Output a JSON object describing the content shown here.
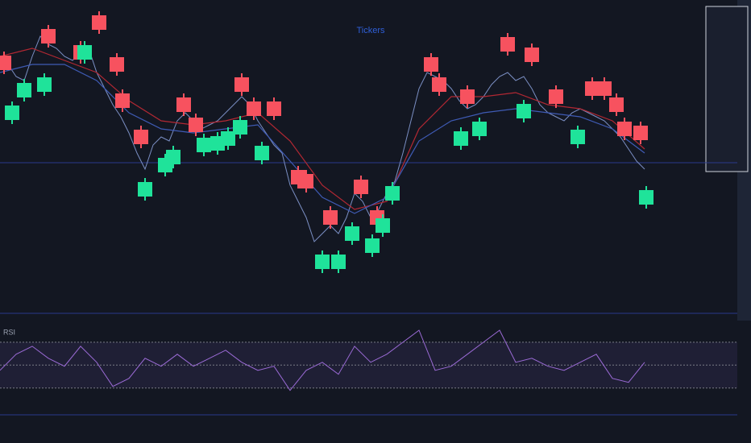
{
  "chart_data": [
    {
      "type": "line",
      "title": "Tickers",
      "xlim": [
        0,
        810
      ],
      "ylim": [
        0,
        400
      ],
      "level": 198,
      "x": [
        0,
        10,
        20,
        30,
        40,
        50,
        60,
        70,
        80,
        90,
        100,
        110,
        120,
        130,
        140,
        150,
        160,
        170,
        180,
        190,
        200,
        210,
        220,
        230,
        240,
        250,
        260,
        270,
        280,
        290,
        300,
        310,
        320,
        330,
        340,
        350,
        360,
        370,
        380,
        390,
        400,
        410,
        420,
        430,
        440,
        450,
        460,
        470,
        480,
        490,
        500,
        510,
        520,
        530,
        540,
        550,
        560,
        570,
        580,
        590,
        600,
        610,
        620,
        630,
        640,
        650,
        660,
        670,
        680,
        690,
        700,
        710,
        720,
        730,
        740,
        750,
        760,
        770,
        780,
        790,
        800
      ],
      "series": [
        {
          "color": "#7b8fc4",
          "values": [
            325,
            320,
            305,
            300,
            330,
            355,
            345,
            340,
            330,
            325,
            335,
            340,
            310,
            290,
            270,
            255,
            235,
            210,
            190,
            220,
            230,
            225,
            250,
            260,
            250,
            240,
            245,
            250,
            260,
            270,
            280,
            270,
            250,
            235,
            220,
            210,
            170,
            150,
            130,
            100,
            110,
            120,
            110,
            130,
            160,
            150,
            130,
            140,
            160,
            175,
            210,
            250,
            290,
            310,
            305,
            300,
            290,
            275,
            265,
            270,
            280,
            295,
            305,
            310,
            300,
            305,
            290,
            270,
            260,
            255,
            250,
            260,
            265,
            260,
            255,
            250,
            240,
            230,
            215,
            200,
            190
          ]
        },
        {
          "color": "#b22833",
          "x": [
            0,
            40,
            80,
            120,
            160,
            200,
            240,
            280,
            320,
            360,
            400,
            440,
            480,
            520,
            560,
            600,
            640,
            680,
            720,
            760,
            800
          ],
          "values": [
            330,
            340,
            325,
            310,
            275,
            250,
            245,
            250,
            260,
            225,
            170,
            140,
            150,
            240,
            280,
            280,
            285,
            270,
            265,
            250,
            215
          ]
        },
        {
          "color": "#3f5bb5",
          "x": [
            0,
            40,
            80,
            120,
            160,
            200,
            240,
            280,
            320,
            360,
            400,
            440,
            480,
            520,
            560,
            600,
            640,
            680,
            720,
            760,
            800
          ],
          "values": [
            310,
            320,
            320,
            300,
            260,
            240,
            235,
            240,
            245,
            200,
            155,
            135,
            155,
            225,
            250,
            260,
            265,
            260,
            255,
            240,
            210
          ]
        }
      ],
      "sell": {
        "color": "#f7525f",
        "x": [
          5,
          60,
          100,
          123,
          145,
          152,
          175,
          228,
          243,
          300,
          315,
          340,
          370,
          380,
          410,
          448,
          468,
          535,
          545,
          580,
          630,
          660,
          690,
          735,
          750,
          765,
          775,
          795
        ],
        "values": [
          322,
          355,
          335,
          372,
          320,
          275,
          230,
          270,
          245,
          295,
          265,
          265,
          180,
          175,
          130,
          168,
          130,
          320,
          295,
          280,
          345,
          332,
          280,
          290,
          290,
          270,
          240,
          235
        ]
      },
      "buy": {
        "color": "#1fe39a",
        "x": [
          15,
          30,
          55,
          105,
          180,
          205,
          215,
          253,
          270,
          283,
          298,
          325,
          400,
          420,
          437,
          462,
          475,
          487,
          572,
          595,
          650,
          717,
          802
        ],
        "values": [
          260,
          288,
          295,
          335,
          165,
          195,
          205,
          220,
          222,
          228,
          242,
          210,
          75,
          75,
          110,
          95,
          120,
          160,
          228,
          240,
          262,
          230,
          155
        ]
      }
    },
    {
      "type": "line",
      "title": "RSI",
      "xlim": [
        0,
        810
      ],
      "ylim": [
        15,
        85
      ],
      "levels": [
        30,
        50,
        70
      ],
      "x": [
        0,
        20,
        40,
        60,
        80,
        100,
        120,
        140,
        160,
        180,
        200,
        220,
        240,
        260,
        280,
        300,
        320,
        340,
        360,
        380,
        400,
        420,
        440,
        460,
        480,
        500,
        520,
        540,
        560,
        580,
        600,
        620,
        640,
        660,
        680,
        700,
        720,
        740,
        760,
        780,
        800
      ],
      "series": [
        {
          "color": "#9b6bd6",
          "values": [
            45.4,
            59.5,
            66.5,
            56,
            49,
            66.5,
            52.5,
            31.4,
            38.4,
            56,
            49,
            59.5,
            49,
            56,
            63,
            52.5,
            45.4,
            49,
            27.9,
            45.4,
            52.5,
            42,
            66.5,
            52.5,
            59.5,
            70,
            80.5,
            45.4,
            49,
            59.5,
            70,
            80.5,
            52.5,
            56,
            49,
            45.4,
            52.5,
            59.5,
            38.4,
            34.9,
            52.5
          ]
        }
      ]
    }
  ]
}
